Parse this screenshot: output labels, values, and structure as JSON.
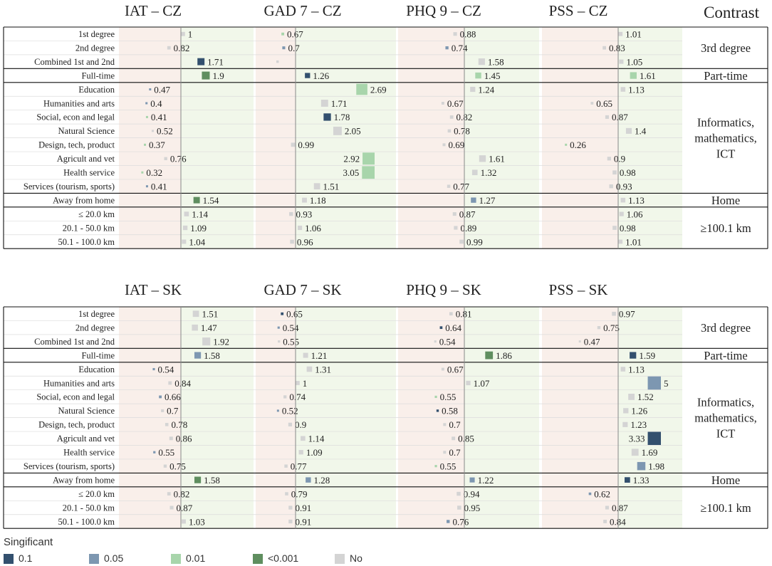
{
  "chart_data": {
    "type": "bar",
    "contrast_header": "Contrast",
    "legend_title": "Singificant",
    "legend": [
      {
        "label": "0.1",
        "color": "#33506e"
      },
      {
        "label": "0.05",
        "color": "#7d97b1"
      },
      {
        "label": "0.01",
        "color": "#a8d5ab"
      },
      {
        "label": "<0.001",
        "color": "#5f8e5f"
      },
      {
        "label": "No",
        "color": "#d4d4d4"
      }
    ],
    "reference_value": 1,
    "rows": [
      "1st degree",
      "2nd degree",
      "Combined 1st and 2nd",
      "Full-time",
      "Education",
      "Humanities and arts",
      "Social, econ and legal",
      "Natural Science",
      "Design, tech, product",
      "Agricult and vet",
      "Health service",
      "Services (tourism, sports)",
      "Away from home",
      "≤ 20.0 km",
      "20.1 - 50.0 km",
      "50.1 - 100.0 km"
    ],
    "groups": [
      {
        "label": "3rd degree",
        "label_lines": [
          "3rd degree"
        ],
        "start": 0,
        "end": 2
      },
      {
        "label": "Part-time",
        "label_lines": [
          "Part-time"
        ],
        "start": 3,
        "end": 3
      },
      {
        "label": "Informatics, mathematics, ICT",
        "label_lines": [
          "Informatics,",
          "mathematics,",
          "ICT"
        ],
        "start": 4,
        "end": 11
      },
      {
        "label": "Home",
        "label_lines": [
          "Home"
        ],
        "start": 12,
        "end": 12
      },
      {
        "label": "≥100.1 km",
        "label_lines": [
          "≥100.1 km"
        ],
        "start": 13,
        "end": 15
      }
    ],
    "panels": [
      {
        "country": "CZ",
        "charts": [
          {
            "title": "IAT – CZ",
            "values": [
              "1",
              "0.82",
              "1.71",
              "1.9",
              "0.47",
              "0.4",
              "0.41",
              "0.52",
              "0.37",
              "0.76",
              "0.32",
              "0.41",
              "1.54",
              "1.14",
              "1.09",
              "1.04"
            ],
            "sig": [
              "No",
              "No",
              "0.1",
              "<0.001",
              "0.05",
              "0.05",
              "0.01",
              "No",
              "0.01",
              "No",
              "0.01",
              "0.05",
              "<0.001",
              "No",
              "No",
              "No"
            ]
          },
          {
            "title": "GAD 7 – CZ",
            "values": [
              "0.67",
              "0.7",
              "",
              "1.26",
              "2.69",
              "1.71",
              "1.78",
              "2.05",
              "0.99",
              "2.92",
              "3.05",
              "1.51",
              "1.18",
              "0.93",
              "1.06",
              "0.96"
            ],
            "sig": [
              "0.01",
              "0.05",
              "No",
              "0.1",
              "0.01",
              "No",
              "0.1",
              "No",
              "No",
              "0.01",
              "0.01",
              "No",
              "No",
              "No",
              "No",
              "No"
            ]
          },
          {
            "title": "PHQ 9 – CZ",
            "values": [
              "0.88",
              "0.74",
              "1.58",
              "1.45",
              "1.24",
              "0.67",
              "0.82",
              "0.78",
              "0.69",
              "1.61",
              "1.32",
              "0.77",
              "1.27",
              "0.87",
              "0.89",
              "0.99"
            ],
            "sig": [
              "No",
              "0.05",
              "No",
              "0.01",
              "No",
              "No",
              "No",
              "No",
              "No",
              "No",
              "No",
              "No",
              "0.05",
              "No",
              "No",
              "No"
            ]
          },
          {
            "title": "PSS – CZ",
            "values": [
              "1.01",
              "0.83",
              "1.05",
              "1.61",
              "1.13",
              "0.65",
              "0.87",
              "1.4",
              "0.26",
              "0.9",
              "0.98",
              "0.93",
              "1.13",
              "1.06",
              "0.98",
              "1.01"
            ],
            "sig": [
              "No",
              "No",
              "No",
              "0.01",
              "No",
              "No",
              "No",
              "No",
              "0.01",
              "No",
              "No",
              "No",
              "No",
              "No",
              "No",
              "No"
            ]
          }
        ]
      },
      {
        "country": "SK",
        "charts": [
          {
            "title": "IAT – SK",
            "values": [
              "1.51",
              "1.47",
              "1.92",
              "1.58",
              "0.54",
              "0.84",
              "0.66",
              "0.7",
              "0.78",
              "0.86",
              "0.55",
              "0.75",
              "1.58",
              "0.82",
              "0.87",
              "1.03"
            ],
            "sig": [
              "No",
              "No",
              "No",
              "0.05",
              "0.05",
              "No",
              "0.05",
              "No",
              "No",
              "No",
              "0.05",
              "No",
              "<0.001",
              "No",
              "No",
              "No"
            ]
          },
          {
            "title": "GAD 7 – SK",
            "values": [
              "0.65",
              "0.54",
              "0.55",
              "1.21",
              "1.31",
              "1",
              "0.74",
              "0.52",
              "0.9",
              "1.14",
              "1.09",
              "0.77",
              "1.28",
              "0.79",
              "0.91",
              "0.91"
            ],
            "sig": [
              "0.1",
              "0.05",
              "No",
              "No",
              "No",
              "No",
              "No",
              "0.05",
              "No",
              "No",
              "No",
              "No",
              "0.05",
              "No",
              "No",
              "No"
            ]
          },
          {
            "title": "PHQ 9 – SK",
            "values": [
              "0.81",
              "0.64",
              "0.54",
              "1.86",
              "0.67",
              "1.07",
              "0.55",
              "0.58",
              "0.7",
              "0.85",
              "0.7",
              "0.55",
              "1.22",
              "0.94",
              "0.95",
              "0.76"
            ],
            "sig": [
              "No",
              "0.1",
              "No",
              "<0.001",
              "No",
              "No",
              "0.01",
              "0.1",
              "No",
              "No",
              "No",
              "0.01",
              "0.05",
              "No",
              "No",
              "0.05"
            ]
          },
          {
            "title": "PSS – SK",
            "values": [
              "0.97",
              "0.75",
              "0.47",
              "1.59",
              "1.13",
              "5",
              "1.52",
              "1.26",
              "1.23",
              "3.33",
              "1.69",
              "1.98",
              "1.33",
              "0.62",
              "0.87",
              "0.84"
            ],
            "sig": [
              "No",
              "No",
              "No",
              "0.1",
              "No",
              "0.05",
              "No",
              "No",
              "No",
              "0.1",
              "No",
              "0.05",
              "0.1",
              "0.05",
              "No",
              "No"
            ]
          }
        ]
      }
    ]
  }
}
